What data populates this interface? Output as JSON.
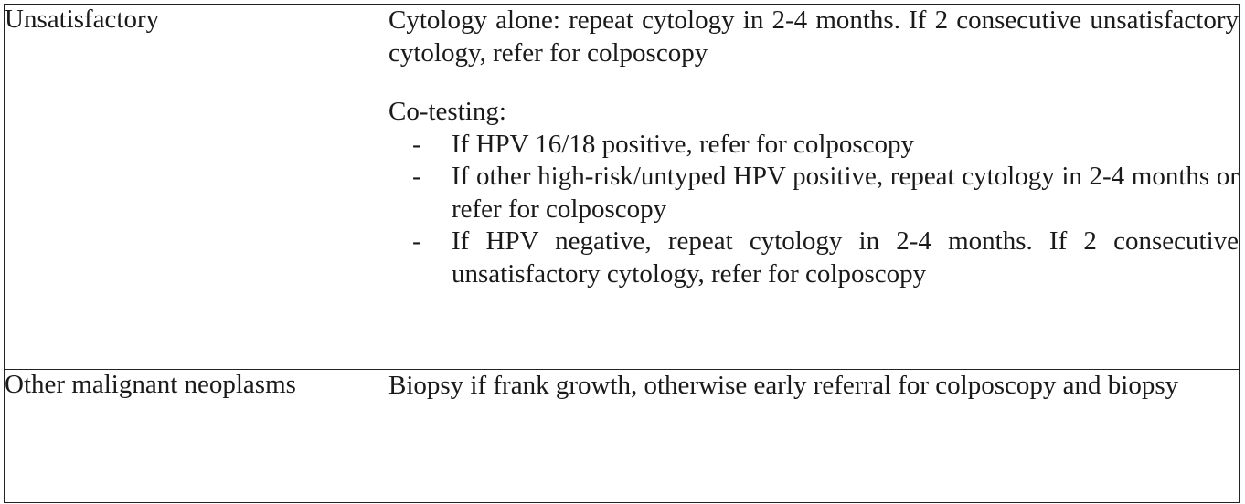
{
  "rows": [
    {
      "category": "Unsatisfactory",
      "cytology_alone": "Cytology alone:  repeat cytology in 2-4 months.  If 2 consecutive unsatisfactory cytology, refer for colposcopy",
      "cotesting_heading": "Co-testing:",
      "cotesting_items": [
        "If HPV 16/18 positive, refer for colposcopy",
        "If other high-risk/untyped HPV positive, repeat cytology in 2-4 months or refer for colposcopy",
        "If HPV negative, repeat cytology in 2-4 months. If 2 consecutive unsatisfactory cytology, refer for colposcopy"
      ]
    },
    {
      "category": "Other malignant neoplasms",
      "recommendation": "Biopsy if frank growth, otherwise early referral for colposcopy and biopsy"
    }
  ],
  "bullet_glyph": "-"
}
